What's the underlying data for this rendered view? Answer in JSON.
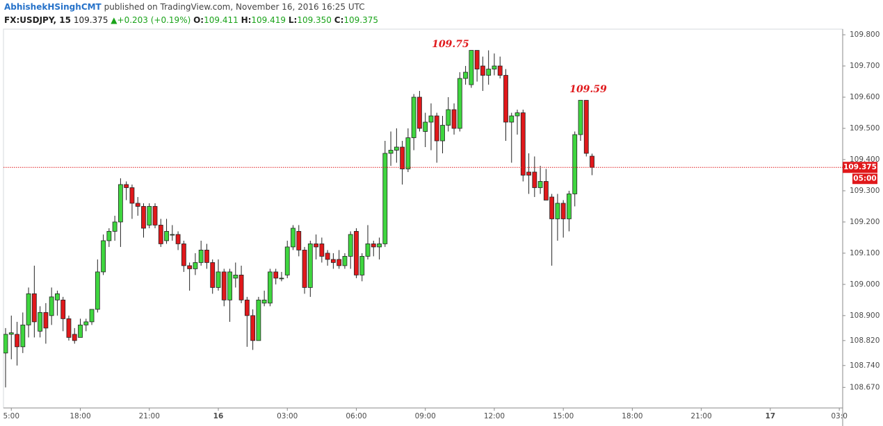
{
  "header": {
    "author": "AbhishekHSinghCMT",
    "published": "published on TradingView.com, November 16, 2016 16:25 UTC",
    "symbol": "FX:USDJPY, 15",
    "last": "109.375",
    "change": "+0.203 (+0.19%)",
    "ohlc": [
      {
        "label": "O:",
        "value": "109.411"
      },
      {
        "label": "H:",
        "value": "109.419"
      },
      {
        "label": "L:",
        "value": "109.350"
      },
      {
        "label": "C:",
        "value": "109.375"
      }
    ]
  },
  "chart_data": {
    "type": "candlestick",
    "categories": [
      null,
      "5:00",
      null,
      null,
      null,
      null,
      null,
      null,
      null,
      null,
      null,
      null,
      null,
      "18:00",
      null,
      null,
      null,
      null,
      null,
      null,
      null,
      null,
      null,
      null,
      null,
      "21:00",
      null,
      null,
      null,
      null,
      null,
      null,
      null,
      null,
      null,
      null,
      null,
      "16",
      null,
      null,
      null,
      null,
      null,
      null,
      null,
      null,
      null,
      null,
      null,
      "03:00",
      null,
      null,
      null,
      null,
      null,
      null,
      null,
      null,
      null,
      null,
      null,
      "06:00",
      null,
      null,
      null,
      null,
      null,
      null,
      null,
      null,
      null,
      null,
      null,
      "09:00",
      null,
      null,
      null,
      null,
      null,
      null,
      null,
      null,
      null,
      null,
      null,
      "12:00",
      null,
      null,
      null,
      null,
      null,
      null,
      null,
      null,
      null,
      null,
      null,
      "15:00",
      null,
      null,
      null,
      null,
      null,
      null,
      null,
      null,
      null,
      null,
      null,
      "18:00",
      null,
      null,
      null,
      null,
      null,
      null,
      null,
      null,
      null,
      null,
      null,
      "21:00",
      null,
      null,
      null,
      null,
      null,
      null,
      null,
      null,
      null,
      null,
      null,
      "17",
      null,
      null,
      null,
      null,
      null,
      null,
      null,
      null,
      null,
      null,
      null,
      "03:0"
    ],
    "open": [
      108.78,
      108.84,
      108.84,
      108.8,
      108.87,
      108.97,
      108.85,
      108.91,
      108.9,
      108.95,
      108.95,
      108.89,
      108.84,
      108.83,
      108.87,
      108.88,
      108.92,
      109.04,
      109.14,
      109.17,
      109.2,
      109.32,
      109.31,
      109.26,
      109.25,
      109.19,
      109.25,
      109.19,
      109.14,
      109.16,
      109.16,
      109.13,
      109.06,
      109.05,
      109.07,
      109.11,
      109.07,
      108.99,
      109.04,
      108.95,
      109.02,
      109.03,
      108.95,
      108.9,
      108.82,
      108.94,
      108.94,
      109.04,
      109.02,
      109.03,
      109.12,
      109.17,
      109.11,
      108.99,
      109.13,
      109.13,
      109.1,
      109.08,
      109.08,
      109.06,
      109.09,
      109.17,
      109.03,
      109.09,
      109.13,
      109.12,
      109.13,
      109.42,
      109.43,
      109.44,
      109.37,
      109.47,
      109.6,
      109.49,
      109.52,
      109.54,
      109.46,
      109.51,
      109.56,
      109.5,
      109.66,
      109.64,
      109.75,
      109.7,
      109.67,
      109.69,
      109.7,
      109.67,
      109.52,
      109.54,
      109.55,
      109.36,
      109.36,
      109.31,
      109.33,
      109.28,
      109.21,
      109.26,
      109.21,
      109.29,
      109.48,
      109.59,
      109.411,
      null,
      null,
      null,
      null,
      null,
      null,
      null,
      null,
      null,
      null,
      null,
      null,
      null,
      null,
      null,
      null,
      null,
      null,
      null,
      null,
      null,
      null,
      null,
      null,
      null,
      null,
      null,
      null,
      null,
      null,
      null,
      null,
      null,
      null,
      null,
      null,
      null,
      null,
      null,
      null,
      null,
      null,
      null
    ],
    "high": [
      108.86,
      108.9,
      108.88,
      108.91,
      108.99,
      109.06,
      108.93,
      108.94,
      108.99,
      108.98,
      108.96,
      108.9,
      108.86,
      108.89,
      108.89,
      108.92,
      109.08,
      109.16,
      109.18,
      109.22,
      109.34,
      109.33,
      109.32,
      109.28,
      109.26,
      109.26,
      109.26,
      109.21,
      109.21,
      109.19,
      109.17,
      109.14,
      109.07,
      109.1,
      109.14,
      109.13,
      109.08,
      109.08,
      109.05,
      109.05,
      109.07,
      109.06,
      108.96,
      108.92,
      108.96,
      108.98,
      109.05,
      109.05,
      109.04,
      109.14,
      109.19,
      109.19,
      109.12,
      109.14,
      109.16,
      109.15,
      109.11,
      109.1,
      109.11,
      109.1,
      109.17,
      109.18,
      109.1,
      109.19,
      109.14,
      109.15,
      109.46,
      109.49,
      109.5,
      109.46,
      109.5,
      109.61,
      109.62,
      109.55,
      109.58,
      109.55,
      109.54,
      109.6,
      109.58,
      109.68,
      109.7,
      109.75,
      109.75,
      109.73,
      109.75,
      109.74,
      109.73,
      109.69,
      109.55,
      109.56,
      109.56,
      109.42,
      109.41,
      109.38,
      109.37,
      109.29,
      109.29,
      109.27,
      109.3,
      109.49,
      109.59,
      109.59,
      109.419,
      null,
      null,
      null,
      null,
      null,
      null,
      null,
      null,
      null,
      null,
      null,
      null,
      null,
      null,
      null,
      null,
      null,
      null,
      null,
      null,
      null,
      null,
      null,
      null,
      null,
      null,
      null,
      null,
      null,
      null,
      null,
      null,
      null,
      null,
      null,
      null,
      null,
      null,
      null,
      null,
      null,
      null,
      null
    ],
    "low": [
      108.67,
      108.76,
      108.74,
      108.78,
      108.83,
      108.83,
      108.83,
      108.81,
      108.87,
      108.9,
      108.85,
      108.82,
      108.81,
      108.83,
      108.85,
      108.87,
      108.91,
      109.03,
      109.12,
      109.14,
      109.12,
      109.27,
      109.21,
      109.22,
      109.15,
      109.18,
      109.18,
      109.12,
      109.13,
      109.14,
      109.11,
      109.04,
      108.98,
      109.03,
      109.06,
      109.05,
      108.97,
      108.98,
      108.93,
      108.88,
      108.99,
      108.94,
      108.8,
      108.79,
      108.82,
      108.93,
      108.93,
      109.0,
      109.01,
      109.02,
      109.11,
      109.09,
      108.97,
      108.96,
      109.08,
      109.07,
      109.06,
      109.05,
      109.05,
      109.05,
      109.05,
      109.02,
      109.01,
      109.08,
      109.09,
      109.08,
      109.12,
      109.38,
      109.39,
      109.32,
      109.36,
      109.43,
      109.49,
      109.44,
      109.43,
      109.39,
      109.42,
      109.49,
      109.48,
      109.49,
      109.64,
      109.63,
      109.65,
      109.62,
      109.64,
      109.67,
      109.66,
      109.46,
      109.39,
      109.48,
      109.33,
      109.29,
      109.28,
      109.29,
      109.27,
      109.06,
      109.14,
      109.15,
      109.17,
      109.25,
      109.46,
      109.41,
      109.35,
      null,
      null,
      null,
      null,
      null,
      null,
      null,
      null,
      null,
      null,
      null,
      null,
      null,
      null,
      null,
      null,
      null,
      null,
      null,
      null,
      null,
      null,
      null,
      null,
      null,
      null,
      null,
      null,
      null,
      null,
      null,
      null,
      null,
      null,
      null,
      null,
      null,
      null,
      null,
      null,
      null,
      null,
      null
    ],
    "close": [
      108.84,
      108.845,
      108.8,
      108.87,
      108.97,
      108.88,
      108.91,
      108.86,
      108.96,
      108.97,
      108.89,
      108.83,
      108.82,
      108.87,
      108.88,
      108.92,
      109.04,
      109.14,
      109.17,
      109.2,
      109.32,
      109.31,
      109.26,
      109.25,
      109.18,
      109.25,
      109.19,
      109.13,
      109.17,
      109.16,
      109.13,
      109.06,
      109.05,
      109.07,
      109.11,
      109.07,
      108.99,
      109.04,
      108.95,
      109.04,
      109.03,
      108.95,
      108.9,
      108.82,
      108.95,
      108.95,
      109.04,
      109.02,
      109.02,
      109.12,
      109.18,
      109.11,
      108.99,
      109.13,
      109.12,
      109.09,
      109.08,
      109.07,
      109.06,
      109.09,
      109.16,
      109.03,
      109.09,
      109.13,
      109.12,
      109.13,
      109.42,
      109.43,
      109.44,
      109.37,
      109.47,
      109.6,
      109.5,
      109.52,
      109.54,
      109.46,
      109.51,
      109.56,
      109.5,
      109.66,
      109.68,
      109.75,
      109.69,
      109.67,
      109.69,
      109.7,
      109.67,
      109.52,
      109.54,
      109.55,
      109.35,
      109.35,
      109.31,
      109.33,
      109.27,
      109.21,
      109.26,
      109.21,
      109.29,
      109.48,
      109.59,
      109.42,
      109.375,
      null,
      null,
      null,
      null,
      null,
      null,
      null,
      null,
      null,
      null,
      null,
      null,
      null,
      null,
      null,
      null,
      null,
      null,
      null,
      null,
      null,
      null,
      null,
      null,
      null,
      null,
      null,
      null,
      null,
      null,
      null,
      null,
      null,
      null,
      null,
      null,
      null,
      null,
      null,
      null,
      null,
      null,
      null
    ],
    "up_color": "#3fd63f",
    "down_color": "#e0181b",
    "ylim": [
      108.604,
      109.818
    ],
    "yticks": [
      {
        "value": 108.67,
        "label": "108.670"
      },
      {
        "value": 108.74,
        "label": "108.740"
      },
      {
        "value": 108.82,
        "label": "108.820"
      },
      {
        "value": 108.9,
        "label": "108.900"
      },
      {
        "value": 109.0,
        "label": "109.000"
      },
      {
        "value": 109.1,
        "label": "109.100"
      },
      {
        "value": 109.2,
        "label": "109.200"
      },
      {
        "value": 109.3,
        "label": "109.300"
      },
      {
        "value": 109.4,
        "label": "109.400"
      },
      {
        "value": 109.5,
        "label": "109.500"
      },
      {
        "value": 109.6,
        "label": "109.600"
      },
      {
        "value": 109.7,
        "label": "109.700"
      },
      {
        "value": 109.8,
        "label": "109.800"
      }
    ],
    "price_line": {
      "value": 109.375,
      "label": "109.375",
      "countdown": "05:00",
      "color": "#e0181b"
    },
    "annotations": [
      "109.75",
      "109.59"
    ]
  }
}
